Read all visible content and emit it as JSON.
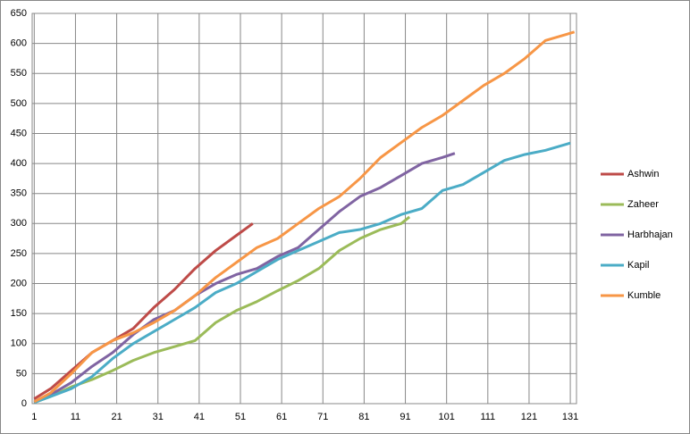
{
  "chart_data": {
    "type": "line",
    "legend": "right",
    "grid": true,
    "xlim": [
      0.5,
      132.5
    ],
    "xticks": [
      1,
      11,
      21,
      31,
      41,
      51,
      61,
      71,
      81,
      91,
      101,
      111,
      121,
      131
    ],
    "ylim": [
      0,
      650
    ],
    "yticks": [
      0,
      50,
      100,
      150,
      200,
      250,
      300,
      350,
      400,
      450,
      500,
      550,
      600,
      650
    ],
    "series": [
      {
        "name": "Ashwin",
        "color": "#be4b48",
        "x": [
          1,
          5,
          10,
          15,
          20,
          25,
          30,
          35,
          40,
          45,
          50,
          54
        ],
        "values": [
          8,
          25,
          55,
          85,
          105,
          125,
          160,
          190,
          225,
          255,
          280,
          300
        ]
      },
      {
        "name": "Zaheer",
        "color": "#9bbb59",
        "x": [
          1,
          5,
          10,
          15,
          20,
          25,
          30,
          35,
          40,
          45,
          50,
          55,
          60,
          65,
          70,
          75,
          80,
          85,
          90,
          92
        ],
        "values": [
          2,
          12,
          28,
          40,
          55,
          72,
          85,
          95,
          105,
          135,
          155,
          170,
          188,
          205,
          225,
          255,
          275,
          290,
          300,
          311
        ]
      },
      {
        "name": "Harbhajan",
        "color": "#8064a2",
        "x": [
          1,
          5,
          10,
          15,
          20,
          25,
          30,
          35,
          40,
          45,
          50,
          55,
          60,
          65,
          70,
          75,
          80,
          85,
          90,
          95,
          100,
          103
        ],
        "values": [
          2,
          15,
          35,
          62,
          85,
          115,
          140,
          155,
          180,
          200,
          215,
          225,
          245,
          260,
          290,
          320,
          345,
          360,
          380,
          400,
          410,
          417
        ]
      },
      {
        "name": "Kapil",
        "color": "#4bacc6",
        "x": [
          1,
          5,
          10,
          15,
          20,
          25,
          30,
          35,
          40,
          45,
          50,
          55,
          60,
          65,
          70,
          75,
          80,
          85,
          90,
          95,
          100,
          105,
          110,
          115,
          120,
          125,
          131
        ],
        "values": [
          2,
          12,
          25,
          45,
          75,
          100,
          120,
          140,
          160,
          185,
          200,
          220,
          240,
          255,
          270,
          285,
          290,
          300,
          315,
          325,
          355,
          365,
          385,
          405,
          415,
          422,
          434
        ]
      },
      {
        "name": "Kumble",
        "color": "#f79646",
        "x": [
          1,
          5,
          10,
          15,
          20,
          25,
          30,
          35,
          40,
          45,
          50,
          55,
          60,
          65,
          70,
          75,
          80,
          85,
          90,
          95,
          100,
          105,
          110,
          115,
          120,
          125,
          130,
          132
        ],
        "values": [
          3,
          18,
          50,
          85,
          105,
          118,
          135,
          155,
          180,
          210,
          235,
          260,
          275,
          300,
          325,
          345,
          375,
          410,
          435,
          460,
          480,
          505,
          530,
          550,
          575,
          605,
          615,
          619
        ]
      }
    ]
  }
}
